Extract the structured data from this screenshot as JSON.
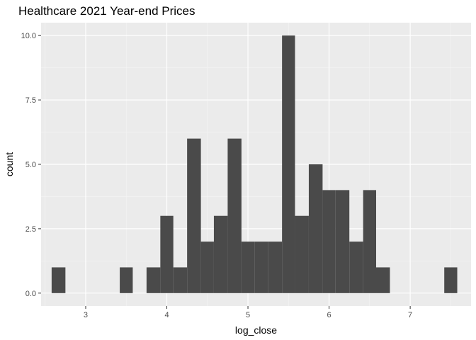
{
  "chart_data": {
    "type": "bar",
    "subtype": "histogram",
    "title": "Healthcare 2021 Year-end Prices",
    "xlabel": "log_close",
    "ylabel": "count",
    "xlim": [
      2.45,
      7.75
    ],
    "ylim": [
      -0.5,
      10.5
    ],
    "x_ticks": [
      3,
      4,
      5,
      6,
      7
    ],
    "x_tick_labels": [
      "3",
      "4",
      "5",
      "6",
      "7"
    ],
    "y_ticks": [
      0,
      2.5,
      5,
      7.5,
      10
    ],
    "y_tick_labels": [
      "0.0",
      "2.5",
      "5.0",
      "7.5",
      "10.0"
    ],
    "grid": true,
    "legend": "none",
    "bar_color": "#4a4a4a",
    "panel_color": "#ebebeb",
    "bins": [
      {
        "x0": 2.58,
        "x1": 2.75,
        "count": 1
      },
      {
        "x0": 2.75,
        "x1": 2.92,
        "count": 0
      },
      {
        "x0": 2.92,
        "x1": 3.08,
        "count": 0
      },
      {
        "x0": 3.08,
        "x1": 3.25,
        "count": 0
      },
      {
        "x0": 3.25,
        "x1": 3.42,
        "count": 0
      },
      {
        "x0": 3.42,
        "x1": 3.58,
        "count": 1
      },
      {
        "x0": 3.58,
        "x1": 3.75,
        "count": 0
      },
      {
        "x0": 3.75,
        "x1": 3.92,
        "count": 1
      },
      {
        "x0": 3.92,
        "x1": 4.08,
        "count": 3
      },
      {
        "x0": 4.08,
        "x1": 4.25,
        "count": 1
      },
      {
        "x0": 4.25,
        "x1": 4.42,
        "count": 6
      },
      {
        "x0": 4.42,
        "x1": 4.58,
        "count": 2
      },
      {
        "x0": 4.58,
        "x1": 4.75,
        "count": 3
      },
      {
        "x0": 4.75,
        "x1": 4.92,
        "count": 6
      },
      {
        "x0": 4.92,
        "x1": 5.08,
        "count": 2
      },
      {
        "x0": 5.08,
        "x1": 5.25,
        "count": 2
      },
      {
        "x0": 5.25,
        "x1": 5.42,
        "count": 2
      },
      {
        "x0": 5.42,
        "x1": 5.58,
        "count": 10
      },
      {
        "x0": 5.58,
        "x1": 5.75,
        "count": 3
      },
      {
        "x0": 5.75,
        "x1": 5.92,
        "count": 5
      },
      {
        "x0": 5.92,
        "x1": 6.08,
        "count": 4
      },
      {
        "x0": 6.08,
        "x1": 6.25,
        "count": 4
      },
      {
        "x0": 6.25,
        "x1": 6.42,
        "count": 2
      },
      {
        "x0": 6.42,
        "x1": 6.58,
        "count": 4
      },
      {
        "x0": 6.58,
        "x1": 6.75,
        "count": 1
      },
      {
        "x0": 6.75,
        "x1": 6.92,
        "count": 0
      },
      {
        "x0": 6.92,
        "x1": 7.08,
        "count": 0
      },
      {
        "x0": 7.08,
        "x1": 7.25,
        "count": 0
      },
      {
        "x0": 7.25,
        "x1": 7.42,
        "count": 0
      },
      {
        "x0": 7.42,
        "x1": 7.58,
        "count": 1
      }
    ]
  }
}
